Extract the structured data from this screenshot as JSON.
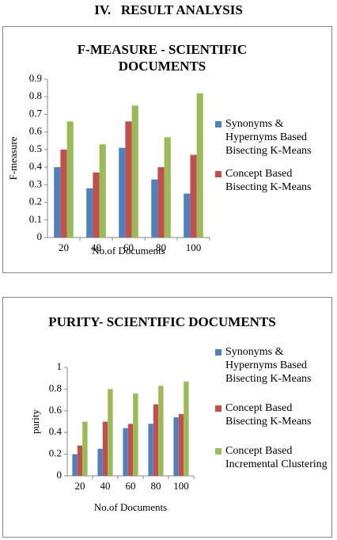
{
  "heading": "IV.   RESULT ANALYSIS",
  "chart_data": [
    {
      "type": "bar",
      "title": "F-MEASURE - SCIENTIFIC DOCUMENTS",
      "x_label": "No.of Documents",
      "y_label": "F-measure",
      "categories": [
        "20",
        "40",
        "60",
        "80",
        "100"
      ],
      "series": [
        {
          "name": "Synonyms & Hypernyms Based Bisecting K-Means",
          "color": "#4f81bd",
          "values": [
            0.4,
            0.28,
            0.51,
            0.33,
            0.25
          ]
        },
        {
          "name": "Concept Based Bisecting K-Means",
          "color": "#c0504d",
          "values": [
            0.5,
            0.37,
            0.66,
            0.4,
            0.47
          ]
        },
        {
          "color": "#9bbb59",
          "values": [
            0.66,
            0.53,
            0.75,
            0.57,
            0.82
          ]
        }
      ],
      "ylim": [
        0,
        0.9
      ],
      "yticks": [
        0,
        0.1,
        0.2,
        0.3,
        0.4,
        0.5,
        0.6,
        0.7,
        0.8,
        0.9
      ],
      "grid": false
    },
    {
      "type": "bar",
      "title": "PURITY- SCIENTIFIC DOCUMENTS",
      "x_label": "No.of  Documents",
      "y_label": "purity",
      "categories": [
        "20",
        "40",
        "60",
        "80",
        "100"
      ],
      "series": [
        {
          "name": "Synonyms & Hypernyms Based Bisecting K-Means",
          "color": "#4f81bd",
          "values": [
            0.2,
            0.25,
            0.44,
            0.48,
            0.54
          ]
        },
        {
          "name": "Concept Based Bisecting K-Means",
          "color": "#c0504d",
          "values": [
            0.28,
            0.5,
            0.48,
            0.66,
            0.57
          ]
        },
        {
          "name": "Concept Based Incremental Clustering",
          "color": "#9bbb59",
          "values": [
            0.5,
            0.8,
            0.76,
            0.83,
            0.87
          ]
        }
      ],
      "ylim": [
        0,
        1
      ],
      "yticks": [
        0,
        0.2,
        0.4,
        0.6,
        0.8,
        1
      ],
      "grid": false
    }
  ]
}
